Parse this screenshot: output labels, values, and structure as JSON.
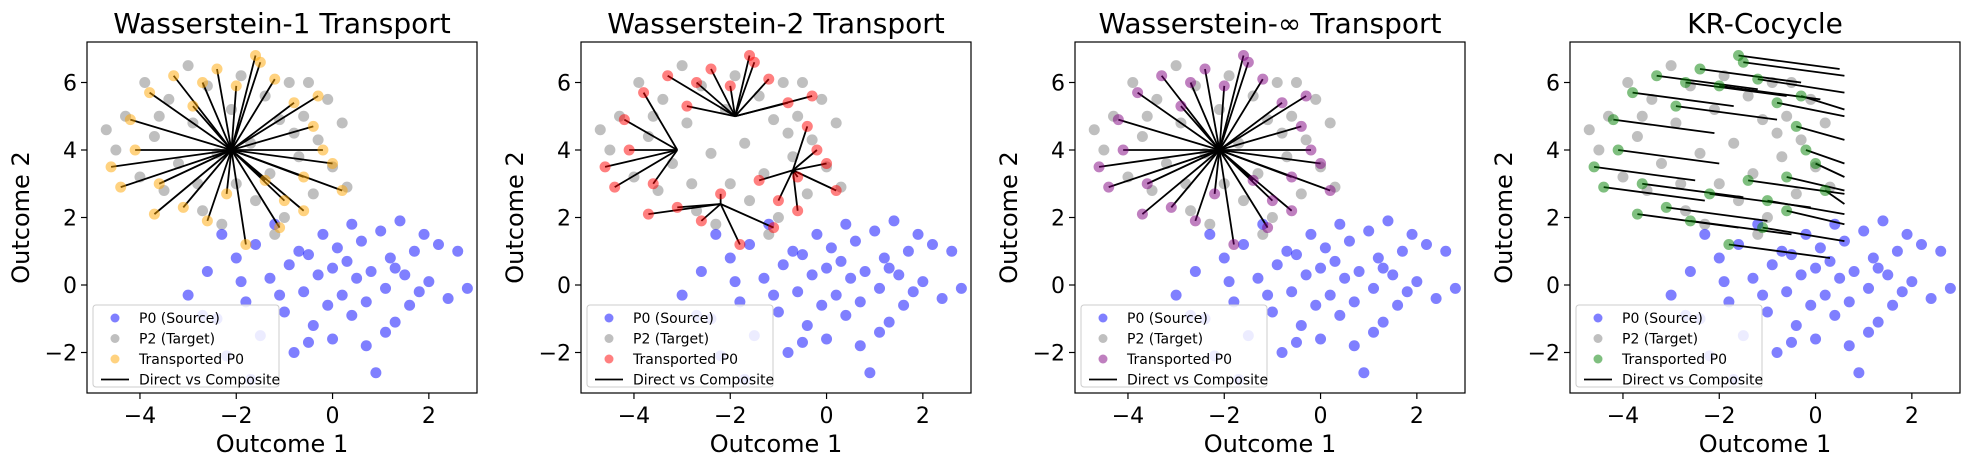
{
  "figure": {
    "panels": [
      {
        "title": "Wasserstein-1 Transport"
      },
      {
        "title": "Wasserstein-2 Transport"
      },
      {
        "title": "Wasserstein-∞ Transport"
      },
      {
        "title": "KR-Cocycle"
      }
    ],
    "xlabel": "Outcome 1",
    "ylabel": "Outcome 2",
    "legend": {
      "source": "P0 (Source)",
      "target": "P2 (Target)",
      "transported": "Transported P0",
      "lines": "Direct vs Composite"
    }
  },
  "chart_data": [
    {
      "type": "scatter",
      "title": "Wasserstein-1 Transport",
      "xlabel": "Outcome 1",
      "ylabel": "Outcome 2",
      "xlim": [
        -5.1,
        3.0
      ],
      "ylim": [
        -3.2,
        7.2
      ],
      "xticks": [
        -4,
        -2,
        0,
        2
      ],
      "yticks": [
        -2,
        0,
        2,
        4,
        6
      ],
      "legend_position": "lower-left",
      "series": [
        {
          "name": "P0 (Source)",
          "color": "#0000ff",
          "points": [
            [
              -3.0,
              -0.3
            ],
            [
              -2.6,
              0.4
            ],
            [
              -2.4,
              -1.0
            ],
            [
              -2.2,
              -2.1
            ],
            [
              -2.0,
              0.8
            ],
            [
              -1.8,
              -0.5
            ],
            [
              -1.6,
              1.2
            ],
            [
              -1.5,
              -1.5
            ],
            [
              -1.3,
              0.2
            ],
            [
              -1.2,
              1.8
            ],
            [
              -1.0,
              -0.8
            ],
            [
              -0.9,
              0.6
            ],
            [
              -0.8,
              -2.0
            ],
            [
              -0.7,
              1.0
            ],
            [
              -0.6,
              -0.2
            ],
            [
              -0.5,
              0.9
            ],
            [
              -0.4,
              -1.2
            ],
            [
              -0.3,
              0.3
            ],
            [
              -0.2,
              1.5
            ],
            [
              -0.1,
              -0.6
            ],
            [
              0.0,
              0.5
            ],
            [
              0.0,
              -1.6
            ],
            [
              0.1,
              1.1
            ],
            [
              0.2,
              -0.3
            ],
            [
              0.3,
              0.7
            ],
            [
              0.4,
              -0.9
            ],
            [
              0.5,
              0.2
            ],
            [
              0.6,
              1.3
            ],
            [
              0.7,
              -0.5
            ],
            [
              0.8,
              0.4
            ],
            [
              0.9,
              -2.6
            ],
            [
              1.0,
              1.6
            ],
            [
              1.1,
              -0.1
            ],
            [
              1.2,
              0.8
            ],
            [
              1.3,
              -1.1
            ],
            [
              1.4,
              1.9
            ],
            [
              1.5,
              0.3
            ],
            [
              1.6,
              -0.6
            ],
            [
              1.7,
              1.0
            ],
            [
              1.8,
              -0.2
            ],
            [
              1.9,
              1.5
            ],
            [
              2.0,
              0.1
            ],
            [
              2.2,
              1.2
            ],
            [
              2.4,
              -0.4
            ],
            [
              2.6,
              1.0
            ],
            [
              2.8,
              -0.1
            ],
            [
              -1.7,
              -2.8
            ],
            [
              -2.3,
              1.5
            ],
            [
              -1.1,
              -0.3
            ],
            [
              0.4,
              1.8
            ],
            [
              -0.5,
              -1.7
            ],
            [
              1.3,
              0.5
            ],
            [
              -2.7,
              -0.9
            ],
            [
              0.7,
              -1.8
            ],
            [
              -1.9,
              0.1
            ],
            [
              1.1,
              -1.4
            ]
          ]
        },
        {
          "name": "P2 (Target)",
          "color": "#808080",
          "points": [
            [
              -4.7,
              4.6
            ],
            [
              -4.5,
              4.0
            ],
            [
              -4.3,
              5.0
            ],
            [
              -4.0,
              3.2
            ],
            [
              -3.9,
              6.0
            ],
            [
              -3.7,
              4.4
            ],
            [
              -3.5,
              2.8
            ],
            [
              -3.4,
              5.5
            ],
            [
              -3.2,
              3.6
            ],
            [
              -3.0,
              6.5
            ],
            [
              -2.9,
              4.8
            ],
            [
              -2.7,
              2.2
            ],
            [
              -2.6,
              5.9
            ],
            [
              -2.4,
              3.9
            ],
            [
              -2.3,
              1.8
            ],
            [
              -2.1,
              5.2
            ],
            [
              -2.0,
              3.0
            ],
            [
              -1.9,
              6.2
            ],
            [
              -1.7,
              4.2
            ],
            [
              -1.6,
              2.5
            ],
            [
              -1.4,
              5.6
            ],
            [
              -1.3,
              3.3
            ],
            [
              -1.1,
              4.9
            ],
            [
              -1.0,
              2.0
            ],
            [
              -0.9,
              6.0
            ],
            [
              -0.7,
              3.8
            ],
            [
              -0.6,
              5.0
            ],
            [
              -0.4,
              2.7
            ],
            [
              -0.3,
              4.3
            ],
            [
              -0.1,
              5.5
            ],
            [
              0.0,
              3.5
            ],
            [
              0.2,
              4.8
            ],
            [
              0.3,
              2.9
            ],
            [
              -0.5,
              6.0
            ],
            [
              -1.2,
              1.5
            ],
            [
              -2.8,
              3.0
            ],
            [
              -3.6,
              5.0
            ],
            [
              -0.8,
              4.5
            ]
          ]
        },
        {
          "name": "Transported P0",
          "color": "#ffa500",
          "points": [
            [
              -4.6,
              3.5
            ],
            [
              -4.4,
              2.9
            ],
            [
              -4.2,
              4.9
            ],
            [
              -3.8,
              5.7
            ],
            [
              -3.6,
              3.0
            ],
            [
              -3.3,
              6.2
            ],
            [
              -3.1,
              2.3
            ],
            [
              -2.9,
              5.3
            ],
            [
              -2.6,
              1.9
            ],
            [
              -2.4,
              6.4
            ],
            [
              -2.2,
              2.7
            ],
            [
              -2.0,
              5.9
            ],
            [
              -1.8,
              1.2
            ],
            [
              -1.6,
              6.8
            ],
            [
              -1.4,
              3.1
            ],
            [
              -1.2,
              6.1
            ],
            [
              -1.0,
              2.5
            ],
            [
              -0.8,
              5.4
            ],
            [
              -0.6,
              3.2
            ],
            [
              -0.4,
              4.7
            ],
            [
              -0.2,
              4.0
            ],
            [
              0.0,
              3.6
            ],
            [
              -0.3,
              5.6
            ],
            [
              -0.6,
              2.2
            ],
            [
              -1.1,
              1.7
            ],
            [
              -3.7,
              2.1
            ],
            [
              -4.1,
              4.0
            ],
            [
              -2.7,
              6.0
            ],
            [
              0.2,
              2.8
            ],
            [
              -1.5,
              6.6
            ]
          ]
        }
      ],
      "lines_hub": [
        -2.1,
        4.0
      ]
    },
    {
      "type": "scatter",
      "title": "Wasserstein-2 Transport",
      "xlabel": "Outcome 1",
      "ylabel": "Outcome 2",
      "xlim": [
        -5.1,
        3.0
      ],
      "ylim": [
        -3.2,
        7.2
      ],
      "xticks": [
        -4,
        -2,
        0,
        2
      ],
      "yticks": [
        -2,
        0,
        2,
        4,
        6
      ],
      "legend_position": "lower-left",
      "series": [
        {
          "name": "P0 (Source)",
          "color": "#0000ff",
          "same_as_panel": 0
        },
        {
          "name": "P2 (Target)",
          "color": "#808080",
          "same_as_panel": 0
        },
        {
          "name": "Transported P0",
          "color": "#ff0000",
          "same_as_panel": 0
        }
      ],
      "lines_hubs": [
        [
          -3.1,
          4.0
        ],
        [
          -1.9,
          5.0
        ],
        [
          -2.2,
          2.4
        ],
        [
          -0.7,
          3.4
        ],
        [
          -1.5,
          3.9
        ]
      ]
    },
    {
      "type": "scatter",
      "title": "Wasserstein-∞ Transport",
      "xlabel": "Outcome 1",
      "ylabel": "Outcome 2",
      "xlim": [
        -5.1,
        3.0
      ],
      "ylim": [
        -3.2,
        7.2
      ],
      "xticks": [
        -4,
        -2,
        0,
        2
      ],
      "yticks": [
        -2,
        0,
        2,
        4,
        6
      ],
      "legend_position": "lower-left",
      "series": [
        {
          "name": "P0 (Source)",
          "color": "#0000ff",
          "same_as_panel": 0
        },
        {
          "name": "P2 (Target)",
          "color": "#808080",
          "same_as_panel": 0
        },
        {
          "name": "Transported P0",
          "color": "#800080",
          "same_as_panel": 0
        }
      ],
      "lines_hub": [
        -2.1,
        4.0
      ]
    },
    {
      "type": "scatter",
      "title": "KR-Cocycle",
      "xlabel": "Outcome 1",
      "ylabel": "Outcome 2",
      "xlim": [
        -5.1,
        3.0
      ],
      "ylim": [
        -3.2,
        7.2
      ],
      "xticks": [
        -4,
        -2,
        0,
        2
      ],
      "yticks": [
        -2,
        0,
        2,
        4,
        6
      ],
      "legend_position": "lower-left",
      "series": [
        {
          "name": "P0 (Source)",
          "color": "#0000ff",
          "same_as_panel": 0
        },
        {
          "name": "P2 (Target)",
          "color": "#808080",
          "same_as_panel": 0
        },
        {
          "name": "Transported P0",
          "color": "#008000",
          "same_as_panel": 0
        }
      ],
      "lines_shift": [
        4.2,
        -0.4
      ]
    }
  ]
}
